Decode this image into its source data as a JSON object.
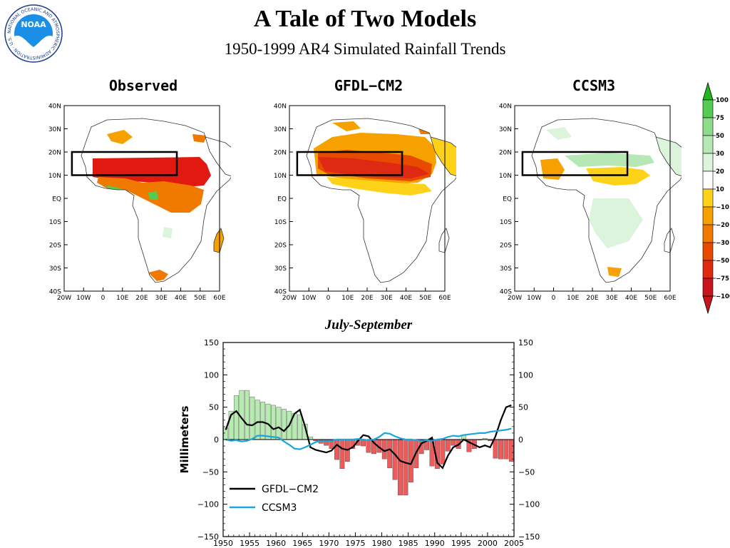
{
  "header": {
    "title": "A Tale of Two Models",
    "subtitle": "1950-1999 AR4 Simulated Rainfall Trends",
    "logo_text": "NOAA",
    "logo_ring_text": "NATIONAL OCEANIC AND ATMOSPHERIC ADMINISTRATION · U.S. DEPARTMENT OF COMMERCE ·"
  },
  "maps": [
    {
      "title": "Observed"
    },
    {
      "title": "GFDL−CM2"
    },
    {
      "title": "CCSM3"
    }
  ],
  "map_axes": {
    "lat_ticks": [
      "40N",
      "30N",
      "20N",
      "10N",
      "EQ",
      "10S",
      "20S",
      "30S",
      "40S"
    ],
    "lon_ticks": [
      "20W",
      "10W",
      "0",
      "10E",
      "20E",
      "30E",
      "40E",
      "50E",
      "60E"
    ]
  },
  "colorbar": {
    "label": "Millimeters",
    "ticks": [
      "100",
      "75",
      "50",
      "30",
      "20",
      "10",
      "−10",
      "−20",
      "−30",
      "−50",
      "−75",
      "−100"
    ],
    "colors": [
      "#1fb81f",
      "#52cc52",
      "#8ddb8d",
      "#b5e8b5",
      "#dcf3dc",
      "#ffffff",
      "#ffd21a",
      "#f6a100",
      "#f07a00",
      "#e84a00",
      "#de2a12",
      "#c8141e"
    ]
  },
  "colors": {
    "wet_bar": "#b7ecb0",
    "dry_bar": "#ec5a5a",
    "gfdl_line": "#000000",
    "ccsm_line": "#1aa5dc"
  },
  "chart_data": {
    "type": "bar",
    "title": "July-September",
    "ylabel": "Millimeters",
    "xlabel": "",
    "xlim": [
      1950,
      2005
    ],
    "ylim": [
      -150,
      150
    ],
    "x_ticks": [
      1950,
      1955,
      1960,
      1965,
      1970,
      1975,
      1980,
      1985,
      1990,
      1995,
      2000,
      2005
    ],
    "y_ticks": [
      150,
      100,
      50,
      0,
      -50,
      -100,
      -150
    ],
    "legend_position": "bottom-left",
    "x": [
      1950,
      1951,
      1952,
      1953,
      1954,
      1955,
      1956,
      1957,
      1958,
      1959,
      1960,
      1961,
      1962,
      1963,
      1964,
      1965,
      1966,
      1967,
      1968,
      1969,
      1970,
      1971,
      1972,
      1973,
      1974,
      1975,
      1976,
      1977,
      1978,
      1979,
      1980,
      1981,
      1982,
      1983,
      1984,
      1985,
      1986,
      1987,
      1988,
      1989,
      1990,
      1991,
      1992,
      1993,
      1994,
      1995,
      1996,
      1997,
      1998,
      1999,
      2000,
      2001,
      2002,
      2003,
      2004
    ],
    "series": [
      {
        "name": "Observed",
        "kind": "bar",
        "values": [
          18,
          44,
          68,
          76,
          76,
          66,
          61,
          58,
          55,
          53,
          50,
          47,
          44,
          40,
          38,
          24,
          4,
          -2,
          -6,
          -9,
          -14,
          -31,
          -45,
          -34,
          -14,
          -9,
          -10,
          -20,
          -22,
          -20,
          -30,
          -44,
          -62,
          -86,
          -86,
          -66,
          -44,
          -22,
          -16,
          -41,
          -45,
          -38,
          -18,
          -9,
          -14,
          7,
          -19,
          -14,
          -1,
          2,
          -2,
          -29,
          -30,
          -30,
          -34
        ]
      },
      {
        "name": "GFDL−CM2",
        "kind": "line",
        "values": [
          15,
          38,
          44,
          33,
          23,
          22,
          27,
          27,
          24,
          16,
          19,
          13,
          22,
          40,
          46,
          20,
          -12,
          -16,
          -18,
          -20,
          -17,
          -8,
          -14,
          -16,
          -12,
          -2,
          7,
          5,
          -5,
          -12,
          -18,
          -15,
          -23,
          -33,
          -36,
          -38,
          -20,
          -6,
          -2,
          3,
          -36,
          -44,
          -25,
          -12,
          -8,
          0,
          -4,
          -8,
          -12,
          -9,
          -12,
          5,
          30,
          50,
          53
        ]
      },
      {
        "name": "CCSM3",
        "kind": "line",
        "values": [
          0,
          -2,
          -1,
          -3,
          -2,
          1,
          6,
          6,
          5,
          4,
          3,
          -3,
          -8,
          -14,
          -15,
          -12,
          -8,
          -4,
          -2,
          -2,
          -2,
          0,
          0,
          0,
          0,
          1,
          0,
          -1,
          0,
          4,
          10,
          9,
          5,
          2,
          0,
          0,
          -1,
          -2,
          -1,
          -2,
          0,
          1,
          4,
          6,
          5,
          7,
          8,
          9,
          10,
          10,
          12,
          13,
          14,
          15,
          17
        ]
      }
    ]
  }
}
